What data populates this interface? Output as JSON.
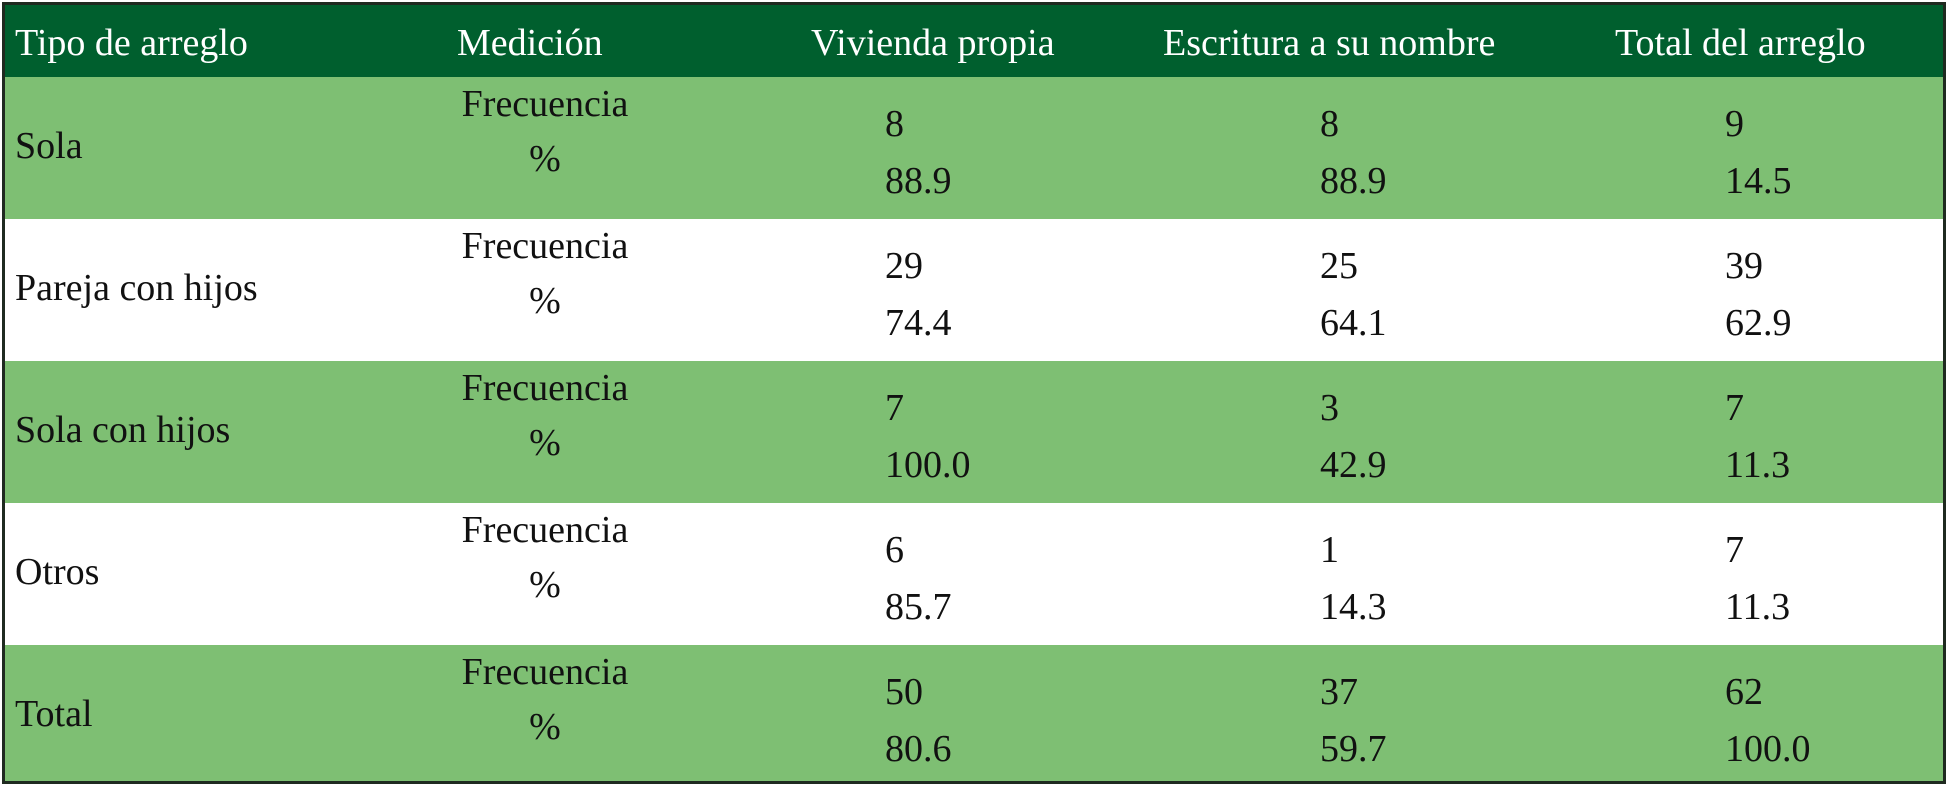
{
  "header": {
    "col_category": "Tipo de arreglo",
    "col_measure": "Medición",
    "col_own_home": "Vivienda propia",
    "col_deed": "Escritura a su nombre",
    "col_total": "Total del arreglo"
  },
  "rows": [
    {
      "category": "Sola",
      "measure_freq": "Frecuencia",
      "measure_pct": "%",
      "own_home": {
        "freq": "8",
        "pct": "88.9"
      },
      "deed": {
        "freq": "8",
        "pct": "88.9"
      },
      "total": {
        "freq": "9",
        "pct": "14.5"
      }
    },
    {
      "category": "Pareja con hijos",
      "measure_freq": "Frecuencia",
      "measure_pct": "%",
      "own_home": {
        "freq": "29",
        "pct": "74.4"
      },
      "deed": {
        "freq": "25",
        "pct": "64.1"
      },
      "total": {
        "freq": "39",
        "pct": "62.9"
      }
    },
    {
      "category": "Sola con hijos",
      "measure_freq": "Frecuencia",
      "measure_pct": "%",
      "own_home": {
        "freq": "7",
        "pct": "100.0"
      },
      "deed": {
        "freq": "3",
        "pct": "42.9"
      },
      "total": {
        "freq": "7",
        "pct": "11.3"
      }
    },
    {
      "category": "Otros",
      "measure_freq": "Frecuencia",
      "measure_pct": "%",
      "own_home": {
        "freq": "6",
        "pct": "85.7"
      },
      "deed": {
        "freq": "1",
        "pct": "14.3"
      },
      "total": {
        "freq": "7",
        "pct": "11.3"
      }
    },
    {
      "category": "Total",
      "measure_freq": "Frecuencia",
      "measure_pct": "%",
      "own_home": {
        "freq": "50",
        "pct": "80.6"
      },
      "deed": {
        "freq": "37",
        "pct": "59.7"
      },
      "total": {
        "freq": "62",
        "pct": "100.0"
      }
    }
  ],
  "colors": {
    "header_bg": "#005f2e",
    "band_green": "#7ebf73",
    "band_white": "#ffffff"
  }
}
